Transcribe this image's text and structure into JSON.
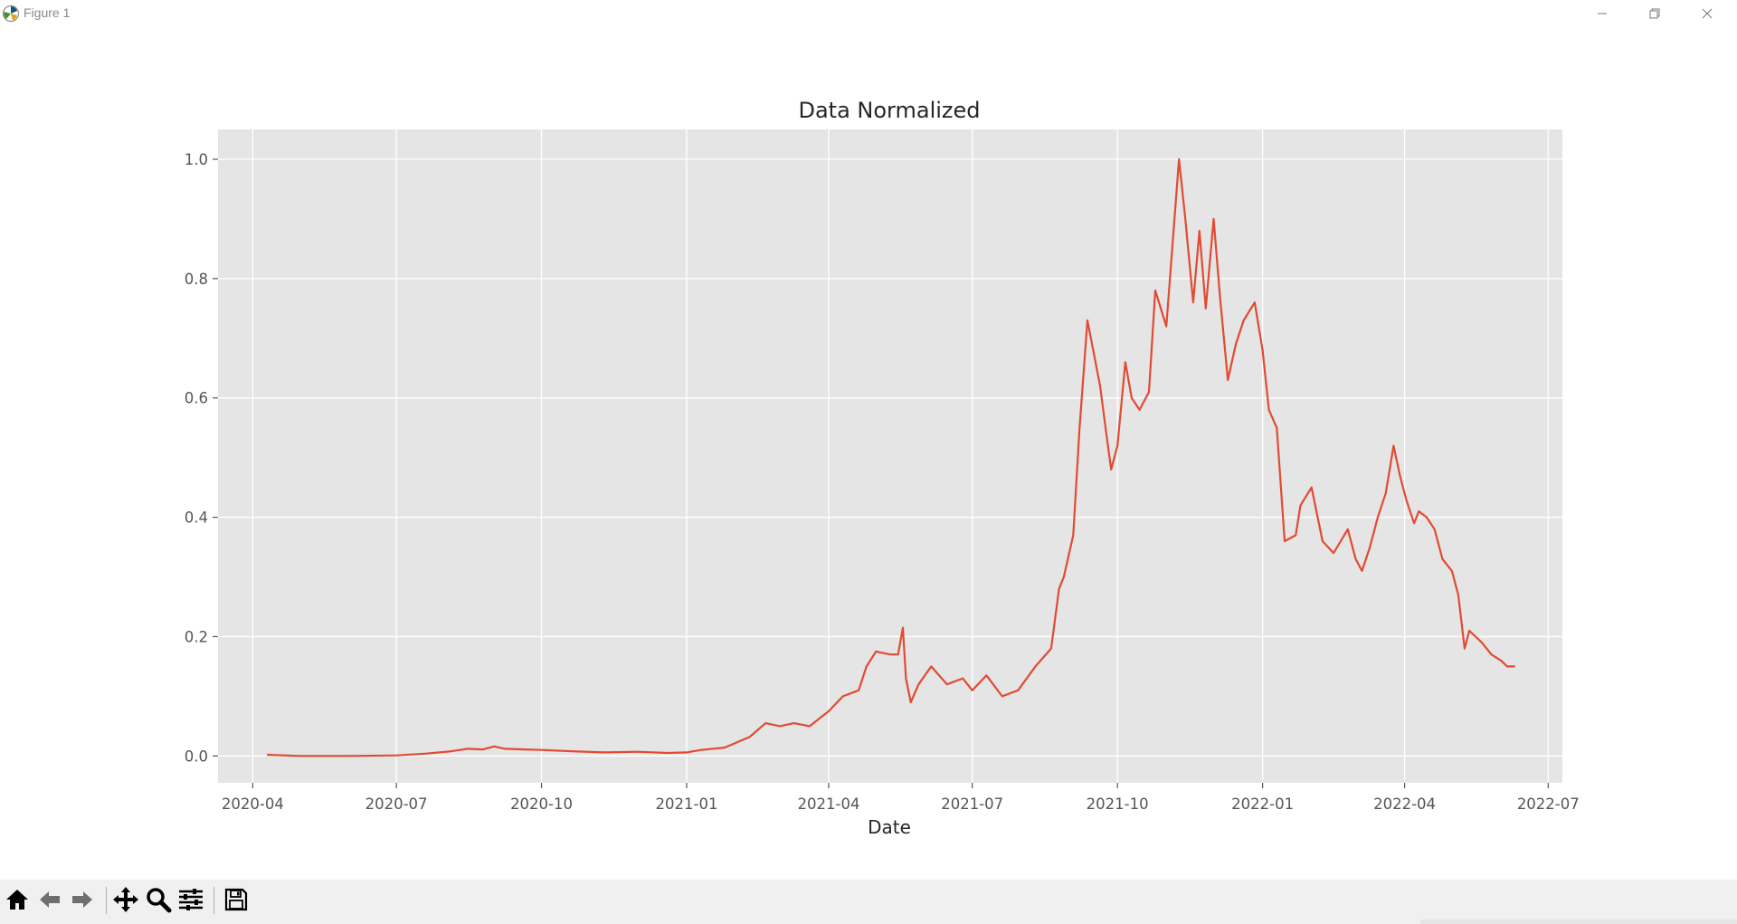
{
  "window": {
    "title": "Figure 1",
    "icons": {
      "app": "matplotlib-icon",
      "minimize": "minimize-icon",
      "maximize": "restore-icon",
      "close": "close-icon"
    }
  },
  "toolbar": {
    "buttons": [
      {
        "name": "home-button",
        "icon": "home-icon"
      },
      {
        "name": "back-button",
        "icon": "arrow-left-icon"
      },
      {
        "name": "forward-button",
        "icon": "arrow-right-icon"
      },
      {
        "name": "pan-button",
        "icon": "move-icon"
      },
      {
        "name": "zoom-button",
        "icon": "magnifier-icon"
      },
      {
        "name": "configure-subplots-button",
        "icon": "sliders-icon"
      },
      {
        "name": "save-button",
        "icon": "floppy-disk-icon"
      }
    ]
  },
  "colors": {
    "line": "#e24a33",
    "plot_background": "#e5e5e5",
    "grid": "#ffffff",
    "text": "#262626",
    "tick_label": "#555555"
  },
  "chart_data": {
    "type": "line",
    "title": "Data Normalized",
    "xlabel": "Date",
    "ylabel": "",
    "xlim": [
      "2020-03-10",
      "2022-07-10"
    ],
    "ylim": [
      -0.045,
      1.05
    ],
    "xticks": [
      "2020-04",
      "2020-07",
      "2020-10",
      "2021-01",
      "2021-04",
      "2021-07",
      "2021-10",
      "2022-01",
      "2022-04",
      "2022-07"
    ],
    "yticks": [
      "0.0",
      "0.2",
      "0.4",
      "0.6",
      "0.8",
      "1.0"
    ],
    "grid": true,
    "legend": "none",
    "series": [
      {
        "x": [
          "2020-04-10",
          "2020-05-01",
          "2020-06-01",
          "2020-07-01",
          "2020-07-20",
          "2020-08-05",
          "2020-08-15",
          "2020-08-25",
          "2020-09-01",
          "2020-09-08",
          "2020-09-20",
          "2020-10-01",
          "2020-10-20",
          "2020-11-10",
          "2020-12-01",
          "2020-12-20",
          "2021-01-01",
          "2021-01-10",
          "2021-01-25",
          "2021-02-10",
          "2021-02-20",
          "2021-03-01",
          "2021-03-10",
          "2021-03-20",
          "2021-04-01",
          "2021-04-10",
          "2021-04-20",
          "2021-04-25",
          "2021-05-01",
          "2021-05-10",
          "2021-05-15",
          "2021-05-18",
          "2021-05-20",
          "2021-05-23",
          "2021-05-28",
          "2021-06-05",
          "2021-06-15",
          "2021-06-25",
          "2021-07-01",
          "2021-07-10",
          "2021-07-20",
          "2021-07-30",
          "2021-08-10",
          "2021-08-20",
          "2021-08-25",
          "2021-08-28",
          "2021-09-03",
          "2021-09-07",
          "2021-09-12",
          "2021-09-20",
          "2021-09-24",
          "2021-09-27",
          "2021-10-01",
          "2021-10-06",
          "2021-10-10",
          "2021-10-15",
          "2021-10-21",
          "2021-10-25",
          "2021-11-01",
          "2021-11-09",
          "2021-11-13",
          "2021-11-18",
          "2021-11-22",
          "2021-11-26",
          "2021-12-01",
          "2021-12-05",
          "2021-12-10",
          "2021-12-15",
          "2021-12-20",
          "2021-12-27",
          "2022-01-01",
          "2022-01-05",
          "2022-01-10",
          "2022-01-15",
          "2022-01-22",
          "2022-01-25",
          "2022-02-01",
          "2022-02-08",
          "2022-02-15",
          "2022-02-24",
          "2022-03-01",
          "2022-03-05",
          "2022-03-10",
          "2022-03-15",
          "2022-03-20",
          "2022-03-25",
          "2022-03-29",
          "2022-04-02",
          "2022-04-07",
          "2022-04-10",
          "2022-04-15",
          "2022-04-20",
          "2022-04-25",
          "2022-05-01",
          "2022-05-05",
          "2022-05-09",
          "2022-05-12",
          "2022-05-16",
          "2022-05-20",
          "2022-05-26",
          "2022-06-01",
          "2022-06-05",
          "2022-06-10"
        ],
        "y": [
          0.002,
          0.0,
          0.0,
          0.001,
          0.004,
          0.008,
          0.012,
          0.011,
          0.016,
          0.012,
          0.011,
          0.01,
          0.008,
          0.006,
          0.007,
          0.005,
          0.006,
          0.01,
          0.014,
          0.032,
          0.055,
          0.05,
          0.055,
          0.05,
          0.075,
          0.1,
          0.11,
          0.15,
          0.175,
          0.17,
          0.17,
          0.215,
          0.13,
          0.09,
          0.12,
          0.15,
          0.12,
          0.13,
          0.11,
          0.135,
          0.1,
          0.11,
          0.15,
          0.18,
          0.28,
          0.3,
          0.37,
          0.55,
          0.73,
          0.62,
          0.54,
          0.48,
          0.52,
          0.66,
          0.6,
          0.58,
          0.61,
          0.78,
          0.72,
          1.0,
          0.9,
          0.76,
          0.88,
          0.75,
          0.9,
          0.77,
          0.63,
          0.69,
          0.73,
          0.76,
          0.68,
          0.58,
          0.55,
          0.36,
          0.37,
          0.42,
          0.45,
          0.36,
          0.34,
          0.38,
          0.33,
          0.31,
          0.35,
          0.4,
          0.44,
          0.52,
          0.47,
          0.43,
          0.39,
          0.41,
          0.4,
          0.38,
          0.33,
          0.31,
          0.27,
          0.18,
          0.21,
          0.2,
          0.19,
          0.17,
          0.16,
          0.15,
          0.15
        ]
      }
    ]
  }
}
